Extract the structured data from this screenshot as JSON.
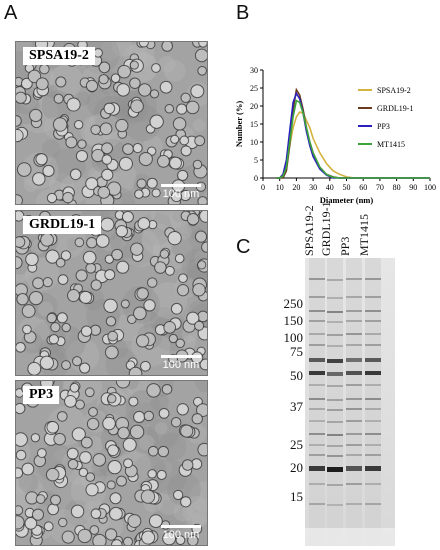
{
  "panels": {
    "a": {
      "letter": "A"
    },
    "b": {
      "letter": "B"
    },
    "c": {
      "letter": "C"
    }
  },
  "em_images": [
    {
      "label": "SPSA19-2",
      "scale": "100 nm"
    },
    {
      "label": "GRDL19-1",
      "scale": "100 nm"
    },
    {
      "label": "PP3",
      "scale": "100 nm"
    }
  ],
  "chart_data": {
    "type": "line",
    "xlabel": "Diameter (nm)",
    "ylabel": "Number (%)",
    "xlim": [
      0,
      100
    ],
    "ylim": [
      0,
      30
    ],
    "xticks": [
      "0",
      "10",
      "20",
      "30",
      "40",
      "50",
      "60",
      "70",
      "80",
      "90",
      "100"
    ],
    "yticks": [
      "0",
      "5",
      "10",
      "15",
      "20",
      "25",
      "30"
    ],
    "legend_position": "right",
    "series": [
      {
        "name": "SPSA19-2",
        "color": "#d4b341",
        "x": [
          8,
          10,
          12,
          14,
          16,
          18,
          20,
          22,
          24,
          26,
          28,
          30,
          34,
          38,
          42,
          46,
          50,
          55,
          60,
          70,
          100
        ],
        "y": [
          0,
          0,
          1,
          4,
          9,
          14,
          17,
          18.3,
          18,
          16,
          14,
          11,
          7,
          4,
          2,
          1,
          0.3,
          0,
          0,
          0,
          0
        ]
      },
      {
        "name": "GRDL19-1",
        "color": "#6b3a1f",
        "x": [
          8,
          10,
          12,
          14,
          16,
          18,
          20,
          22,
          24,
          26,
          28,
          30,
          34,
          38,
          42,
          46,
          50,
          60,
          100
        ],
        "y": [
          0,
          0,
          0,
          2,
          9,
          19,
          24.5,
          23,
          19,
          14,
          10,
          7,
          3,
          1,
          0.3,
          0,
          0,
          0,
          0
        ]
      },
      {
        "name": "PP3",
        "color": "#2b1fbf",
        "x": [
          8,
          10,
          12,
          14,
          16,
          18,
          20,
          22,
          24,
          26,
          28,
          30,
          34,
          38,
          42,
          46,
          50,
          60,
          100
        ],
        "y": [
          0,
          0,
          1,
          5,
          13,
          21,
          23.5,
          22,
          18,
          13,
          9,
          6,
          2.5,
          0.8,
          0,
          0,
          0,
          0,
          0
        ]
      },
      {
        "name": "MT1415",
        "color": "#3ca63c",
        "x": [
          8,
          10,
          12,
          14,
          16,
          18,
          20,
          22,
          24,
          26,
          28,
          30,
          34,
          38,
          42,
          46,
          50,
          60,
          100
        ],
        "y": [
          0,
          0,
          0.5,
          3,
          10,
          17,
          21.5,
          21,
          18,
          14,
          10,
          7,
          3,
          1,
          0.2,
          0,
          0,
          0,
          0
        ]
      }
    ]
  },
  "gel": {
    "lanes": [
      "SPSA19-2",
      "GRDL19-1",
      "PP3",
      "MT1415"
    ],
    "markers": [
      "250",
      "150",
      "100",
      "75",
      "50",
      "37",
      "25",
      "20",
      "15"
    ]
  }
}
